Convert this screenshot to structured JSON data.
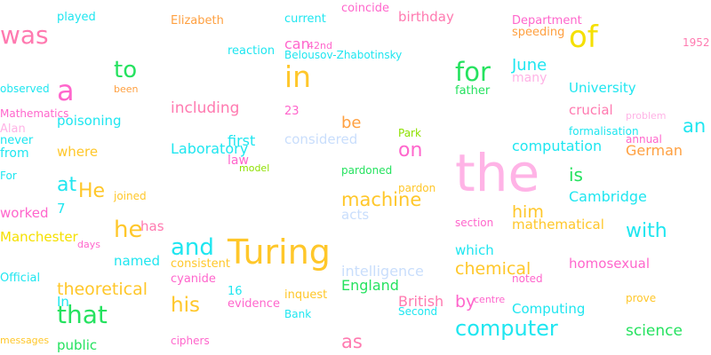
{
  "colors": {
    "pink": "#ff7ab0",
    "light_pink": "#ffb3e6",
    "magenta": "#ff66cc",
    "cyan": "#1fe6f0",
    "green": "#25e25f",
    "lime": "#8ee000",
    "yellow": "#f5e000",
    "gold": "#ffc72a",
    "orange": "#ffa040",
    "blue": "#4fc9ff",
    "pale_blue": "#c9defc",
    "salmon": "#ff7d86"
  },
  "words": [
    {
      "text": "was",
      "color": "pink"
    },
    {
      "text": "played",
      "color": "cyan"
    },
    {
      "text": "Elizabeth",
      "color": "orange"
    },
    {
      "text": "current",
      "color": "cyan"
    },
    {
      "text": "coincide",
      "color": "magenta"
    },
    {
      "text": "birthday",
      "color": "pink"
    },
    {
      "text": "Department",
      "color": "magenta"
    },
    {
      "text": "speeding",
      "color": "orange"
    },
    {
      "text": "of",
      "color": "yellow"
    },
    {
      "text": "1952",
      "color": "pink"
    },
    {
      "text": "to",
      "color": "green"
    },
    {
      "text": "reaction",
      "color": "cyan"
    },
    {
      "text": "can",
      "color": "magenta"
    },
    {
      "text": "42nd",
      "color": "magenta"
    },
    {
      "text": "Belousov-Zhabotinsky",
      "color": "cyan"
    },
    {
      "text": "in",
      "color": "gold"
    },
    {
      "text": "for",
      "color": "green"
    },
    {
      "text": "June",
      "color": "cyan"
    },
    {
      "text": "many",
      "color": "light_pink"
    },
    {
      "text": "observed",
      "color": "cyan"
    },
    {
      "text": "a",
      "color": "magenta"
    },
    {
      "text": "been",
      "color": "orange"
    },
    {
      "text": "father",
      "color": "green"
    },
    {
      "text": "University",
      "color": "cyan"
    },
    {
      "text": "Mathematics",
      "color": "magenta"
    },
    {
      "text": "poisoning",
      "color": "cyan"
    },
    {
      "text": "including",
      "color": "pink"
    },
    {
      "text": "23",
      "color": "magenta"
    },
    {
      "text": "crucial",
      "color": "pink"
    },
    {
      "text": "problem",
      "color": "light_pink"
    },
    {
      "text": "an",
      "color": "cyan"
    },
    {
      "text": "Alan",
      "color": "light_pink"
    },
    {
      "text": "be",
      "color": "orange"
    },
    {
      "text": "Park",
      "color": "lime"
    },
    {
      "text": "formalisation",
      "color": "cyan"
    },
    {
      "text": "never",
      "color": "cyan"
    },
    {
      "text": "first",
      "color": "cyan"
    },
    {
      "text": "considered",
      "color": "pale_blue"
    },
    {
      "text": "annual",
      "color": "magenta"
    },
    {
      "text": "Laboratory",
      "color": "cyan"
    },
    {
      "text": "computation",
      "color": "cyan"
    },
    {
      "text": "from",
      "color": "cyan"
    },
    {
      "text": "where",
      "color": "gold"
    },
    {
      "text": "law",
      "color": "magenta"
    },
    {
      "text": "on",
      "color": "magenta"
    },
    {
      "text": "German",
      "color": "orange"
    },
    {
      "text": "model",
      "color": "lime"
    },
    {
      "text": "the",
      "color": "light_pink"
    },
    {
      "text": "For",
      "color": "cyan"
    },
    {
      "text": "pardoned",
      "color": "green"
    },
    {
      "text": "is",
      "color": "green"
    },
    {
      "text": "at",
      "color": "cyan"
    },
    {
      "text": "He",
      "color": "gold"
    },
    {
      "text": "joined",
      "color": "gold"
    },
    {
      "text": "pardon",
      "color": "gold"
    },
    {
      "text": "machine",
      "color": "gold"
    },
    {
      "text": "Cambridge",
      "color": "cyan"
    },
    {
      "text": "7",
      "color": "cyan"
    },
    {
      "text": "acts",
      "color": "pale_blue"
    },
    {
      "text": "worked",
      "color": "magenta"
    },
    {
      "text": "him",
      "color": "gold"
    },
    {
      "text": "he",
      "color": "gold"
    },
    {
      "text": "has",
      "color": "pink"
    },
    {
      "text": "section",
      "color": "magenta"
    },
    {
      "text": "mathematical",
      "color": "gold"
    },
    {
      "text": "with",
      "color": "cyan"
    },
    {
      "text": "Manchester",
      "color": "yellow"
    },
    {
      "text": "days",
      "color": "magenta"
    },
    {
      "text": "and",
      "color": "cyan"
    },
    {
      "text": "Turing",
      "color": "gold"
    },
    {
      "text": "which",
      "color": "cyan"
    },
    {
      "text": "named",
      "color": "cyan"
    },
    {
      "text": "consistent",
      "color": "gold"
    },
    {
      "text": "homosexual",
      "color": "magenta"
    },
    {
      "text": "intelligence",
      "color": "pale_blue"
    },
    {
      "text": "chemical",
      "color": "gold"
    },
    {
      "text": "Official",
      "color": "cyan"
    },
    {
      "text": "cyanide",
      "color": "magenta"
    },
    {
      "text": "noted",
      "color": "magenta"
    },
    {
      "text": "theoretical",
      "color": "gold"
    },
    {
      "text": "England",
      "color": "green"
    },
    {
      "text": "16",
      "color": "cyan"
    },
    {
      "text": "In",
      "color": "cyan"
    },
    {
      "text": "his",
      "color": "gold"
    },
    {
      "text": "evidence",
      "color": "magenta"
    },
    {
      "text": "inquest",
      "color": "gold"
    },
    {
      "text": "British",
      "color": "pink"
    },
    {
      "text": "by",
      "color": "magenta"
    },
    {
      "text": "centre",
      "color": "magenta"
    },
    {
      "text": "prove",
      "color": "gold"
    },
    {
      "text": "that",
      "color": "green"
    },
    {
      "text": "Bank",
      "color": "cyan"
    },
    {
      "text": "Second",
      "color": "cyan"
    },
    {
      "text": "Computing",
      "color": "cyan"
    },
    {
      "text": "computer",
      "color": "cyan"
    },
    {
      "text": "science",
      "color": "green"
    },
    {
      "text": "messages",
      "color": "gold"
    },
    {
      "text": "public",
      "color": "green"
    },
    {
      "text": "ciphers",
      "color": "magenta"
    },
    {
      "text": "as",
      "color": "pink"
    }
  ]
}
